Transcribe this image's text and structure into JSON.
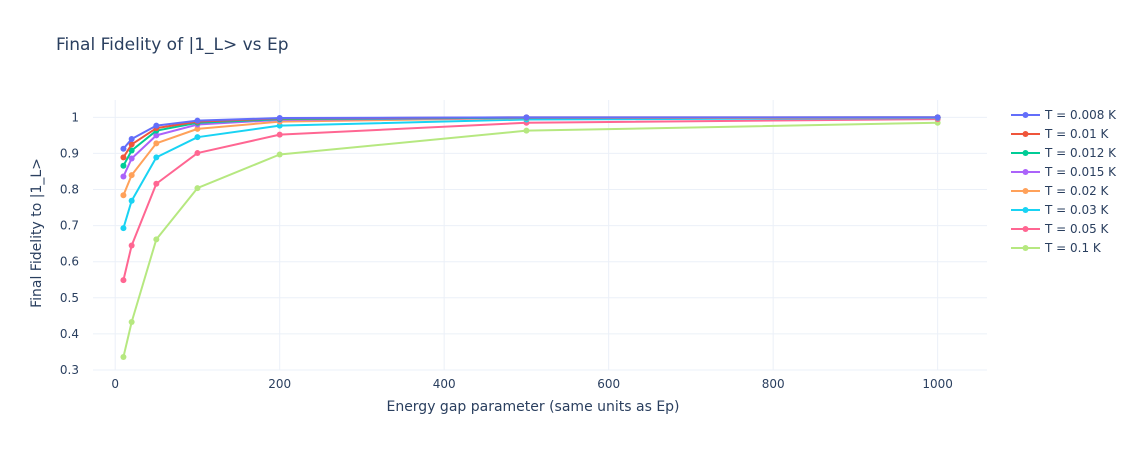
{
  "chart_data": {
    "type": "line",
    "title": "Final Fidelity of |1_L> vs Ep",
    "xlabel": "Energy gap parameter (same units as Ep)",
    "ylabel": "Final Fidelity to |1_L>",
    "xlim": [
      -27,
      1060
    ],
    "ylim": [
      0.3,
      1.048
    ],
    "x_ticks": [
      0,
      200,
      400,
      600,
      800,
      1000
    ],
    "y_ticks": [
      0.3,
      0.4,
      0.5,
      0.6,
      0.7,
      0.8,
      0.9,
      1
    ],
    "y_tick_labels": [
      "0.3",
      "0.4",
      "0.5",
      "0.6",
      "0.7",
      "0.8",
      "0.9",
      "1"
    ],
    "grid": true,
    "legend_position": "top-right",
    "x": [
      10,
      20,
      50,
      100,
      200,
      500,
      1000
    ],
    "series": [
      {
        "name": "T = 0.008 K",
        "color": "#636efa",
        "values": [
          0.913,
          0.94,
          0.977,
          0.991,
          0.998,
          1.0,
          1.0
        ]
      },
      {
        "name": "T = 0.01 K",
        "color": "#ef553b",
        "values": [
          0.889,
          0.925,
          0.97,
          0.988,
          0.997,
          1.0,
          1.0
        ]
      },
      {
        "name": "T = 0.012 K",
        "color": "#00cc96",
        "values": [
          0.866,
          0.908,
          0.963,
          0.985,
          0.995,
          0.999,
          1.0
        ]
      },
      {
        "name": "T = 0.015 K",
        "color": "#ab63fa",
        "values": [
          0.836,
          0.886,
          0.95,
          0.98,
          0.993,
          0.999,
          1.0
        ]
      },
      {
        "name": "T = 0.02 K",
        "color": "#ffa15a",
        "values": [
          0.784,
          0.84,
          0.928,
          0.968,
          0.988,
          0.998,
          0.999
        ]
      },
      {
        "name": "T = 0.03 K",
        "color": "#19d3f3",
        "values": [
          0.693,
          0.769,
          0.889,
          0.945,
          0.977,
          0.994,
          0.998
        ]
      },
      {
        "name": "T = 0.05 K",
        "color": "#ff6692",
        "values": [
          0.549,
          0.645,
          0.816,
          0.901,
          0.952,
          0.985,
          0.995
        ]
      },
      {
        "name": "T = 0.1 K",
        "color": "#b6e880",
        "values": [
          0.336,
          0.433,
          0.662,
          0.804,
          0.897,
          0.963,
          0.985
        ]
      }
    ]
  }
}
